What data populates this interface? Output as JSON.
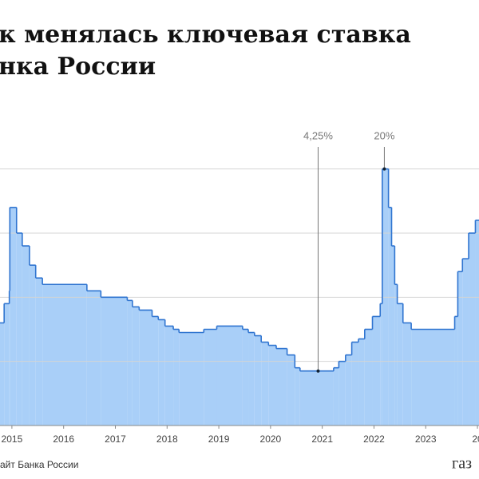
{
  "title_lines": [
    "к менялась ключевая ставка",
    "нка России"
  ],
  "source": "айт Банка России",
  "logo": "газ",
  "chart_data": {
    "type": "step-area",
    "x": [
      2014.77,
      2014.85,
      2014.95,
      2014.96,
      2015.09,
      2015.2,
      2015.34,
      2015.46,
      2015.59,
      2016.45,
      2016.72,
      2017.23,
      2017.33,
      2017.46,
      2017.71,
      2017.83,
      2017.96,
      2018.12,
      2018.23,
      2018.71,
      2018.96,
      2019.46,
      2019.57,
      2019.69,
      2019.82,
      2019.96,
      2020.11,
      2020.32,
      2020.47,
      2020.57,
      2021.22,
      2021.32,
      2021.45,
      2021.57,
      2021.7,
      2021.82,
      2021.97,
      2022.12,
      2022.16,
      2022.28,
      2022.34,
      2022.4,
      2022.45,
      2022.56,
      2022.72,
      2023.56,
      2023.62,
      2023.71,
      2023.83,
      2023.96
    ],
    "values": [
      8,
      9.5,
      10.5,
      17,
      15,
      14,
      12.5,
      11.5,
      11,
      10.5,
      10,
      9.75,
      9.25,
      9,
      8.5,
      8.25,
      7.75,
      7.5,
      7.25,
      7.5,
      7.75,
      7.5,
      7.25,
      7,
      6.5,
      6.25,
      6,
      5.5,
      4.5,
      4.25,
      4.5,
      5,
      5.5,
      6.5,
      6.75,
      7.5,
      8.5,
      9.5,
      20,
      17,
      14,
      11,
      9.5,
      8,
      7.5,
      8.5,
      12,
      13,
      15,
      16
    ],
    "color": "#2f74d0",
    "fill": "#a9cff8",
    "xlim": [
      2014.77,
      2024.03
    ],
    "xticks": [
      2015,
      2016,
      2017,
      2018,
      2019,
      2020,
      2021,
      2022,
      2023,
      {
        "value": 2024,
        "label": "20"
      }
    ],
    "ylim": [
      0,
      20.6
    ],
    "yticks": [
      0,
      5,
      10,
      15,
      20
    ],
    "grid": true,
    "annotations": [
      {
        "text": "4,25%",
        "x": 2020.92,
        "value": 4.25
      },
      {
        "text": "20%",
        "x": 2022.2,
        "value": 20
      }
    ]
  }
}
